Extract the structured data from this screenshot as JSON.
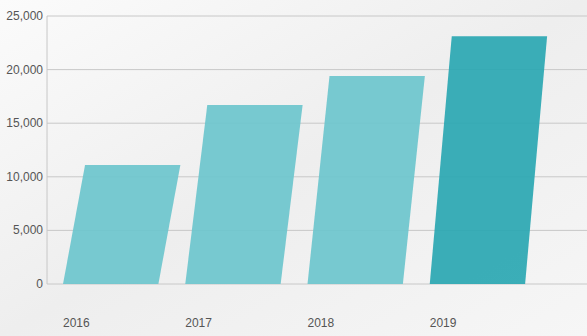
{
  "chart_data": {
    "type": "bar",
    "categories": [
      "2016",
      "2017",
      "2018",
      "2019"
    ],
    "values": [
      11100,
      16700,
      19400,
      23100
    ],
    "colors": [
      "#6cc6cd",
      "#6cc6cd",
      "#6cc6cd",
      "#2aa7b2"
    ],
    "ylim": [
      0,
      25000
    ],
    "yticks": [
      0,
      {
        "value": 5000,
        "label": "5,000"
      },
      {
        "value": 10000,
        "label": "10,000"
      },
      {
        "value": 15000,
        "label": "15,000"
      },
      {
        "value": 20000,
        "label": "20,000"
      },
      {
        "value": 25000,
        "label": "25,000"
      }
    ],
    "grid": true
  }
}
